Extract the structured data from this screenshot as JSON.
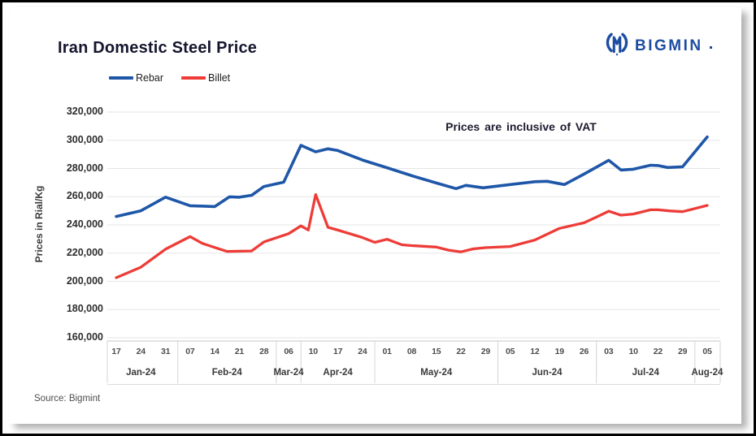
{
  "header": {
    "title": "Iran Domestic Steel Price",
    "legend": [
      {
        "label": "Rebar",
        "color": "#1f57a8"
      },
      {
        "label": "Billet",
        "color": "#ed3c38"
      }
    ],
    "logo": {
      "text": "BIGMIN",
      "color": "#1c4da1"
    }
  },
  "annotation": "Prices are inclusive of VAT",
  "source": "Source: Bigmint",
  "chart_data": {
    "type": "line",
    "title": "Iran Domestic Steel Price",
    "ylabel": "Prices in Rial/Kg",
    "ylim": [
      160000,
      320000
    ],
    "y_tick_step": 20000,
    "grid": "horizontal",
    "legend_position": "top-left",
    "x_unit": "tick_index",
    "x_tick_labels": [
      "17",
      "24",
      "31",
      "07",
      "14",
      "21",
      "28",
      "06",
      "10",
      "17",
      "24",
      "01",
      "08",
      "15",
      "22",
      "29",
      "05",
      "12",
      "19",
      "26",
      "03",
      "10",
      "22",
      "29",
      "05"
    ],
    "months": [
      {
        "label": "Jan-24",
        "from": 0,
        "to": 2
      },
      {
        "label": "Feb-24",
        "from": 3,
        "to": 6
      },
      {
        "label": "Mar-24",
        "from": 7,
        "to": 7
      },
      {
        "label": "Apr-24",
        "from": 8,
        "to": 10
      },
      {
        "label": "May-24",
        "from": 11,
        "to": 15
      },
      {
        "label": "Jun-24",
        "from": 16,
        "to": 19
      },
      {
        "label": "Jul-24",
        "from": 20,
        "to": 23
      },
      {
        "label": "Aug-24",
        "from": 24,
        "to": 24
      }
    ],
    "series": [
      {
        "name": "Rebar",
        "color": "#1f57a8",
        "points": [
          [
            0,
            246000
          ],
          [
            1,
            250000
          ],
          [
            2,
            259700
          ],
          [
            3,
            253600
          ],
          [
            4,
            253000
          ],
          [
            4.6,
            259900
          ],
          [
            5,
            259600
          ],
          [
            5.5,
            261000
          ],
          [
            6,
            267200
          ],
          [
            6.8,
            270300
          ],
          [
            7.5,
            296400
          ],
          [
            8.1,
            291800
          ],
          [
            8.6,
            293900
          ],
          [
            9,
            292700
          ],
          [
            10,
            286000
          ],
          [
            11,
            280500
          ],
          [
            12,
            274900
          ],
          [
            13,
            269700
          ],
          [
            13.8,
            265700
          ],
          [
            14.2,
            268000
          ],
          [
            14.9,
            266300
          ],
          [
            16,
            268600
          ],
          [
            17,
            270600
          ],
          [
            17.5,
            270900
          ],
          [
            18.2,
            268600
          ],
          [
            19,
            276000
          ],
          [
            20,
            285800
          ],
          [
            20.5,
            278900
          ],
          [
            21,
            279500
          ],
          [
            21.7,
            282300
          ],
          [
            22,
            282100
          ],
          [
            22.4,
            280700
          ],
          [
            23,
            281200
          ],
          [
            24,
            302400
          ]
        ]
      },
      {
        "name": "Billet",
        "color": "#ed3c38",
        "points": [
          [
            0,
            202600
          ],
          [
            1,
            210000
          ],
          [
            2,
            222800
          ],
          [
            3,
            231700
          ],
          [
            3.5,
            226900
          ],
          [
            4,
            224000
          ],
          [
            4.5,
            221200
          ],
          [
            5.5,
            221500
          ],
          [
            6,
            228000
          ],
          [
            7,
            233800
          ],
          [
            7.5,
            239300
          ],
          [
            7.8,
            236400
          ],
          [
            8.1,
            261500
          ],
          [
            8.6,
            238300
          ],
          [
            9,
            236300
          ],
          [
            10,
            231000
          ],
          [
            10.5,
            227600
          ],
          [
            11,
            229800
          ],
          [
            11.6,
            225900
          ],
          [
            12,
            225300
          ],
          [
            13,
            224300
          ],
          [
            13.5,
            222100
          ],
          [
            14,
            220900
          ],
          [
            14.5,
            223000
          ],
          [
            15,
            223900
          ],
          [
            16,
            224700
          ],
          [
            17,
            229300
          ],
          [
            18,
            237500
          ],
          [
            19,
            241500
          ],
          [
            19.5,
            245500
          ],
          [
            20,
            249700
          ],
          [
            20.5,
            246900
          ],
          [
            21,
            247700
          ],
          [
            21.7,
            250700
          ],
          [
            22,
            250700
          ],
          [
            22.5,
            249900
          ],
          [
            23,
            249400
          ],
          [
            24,
            253800
          ]
        ]
      }
    ]
  }
}
